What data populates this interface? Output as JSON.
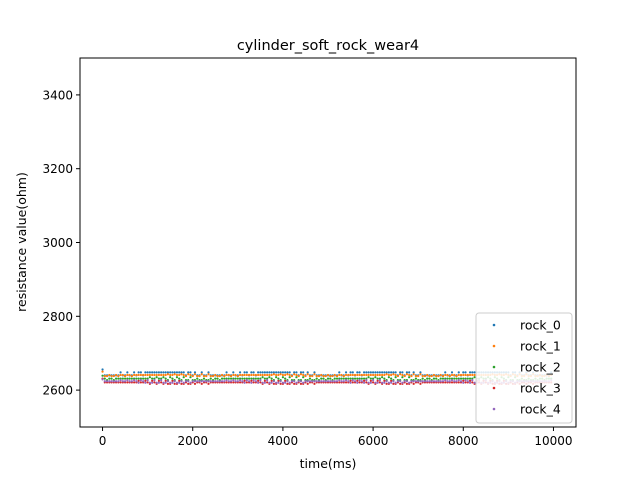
{
  "chart_data": {
    "type": "scatter",
    "title": "cylinder_soft_rock_wear4",
    "xlabel": "time(ms)",
    "ylabel": "resistance value(ohm)",
    "xlim": [
      -500,
      10500
    ],
    "ylim": [
      2500,
      3500
    ],
    "xticks": [
      0,
      2000,
      4000,
      6000,
      8000,
      10000
    ],
    "yticks": [
      2600,
      2800,
      3000,
      3200,
      3400
    ],
    "grid": false,
    "legend_position": "lower right",
    "x_range": [
      0,
      9950
    ],
    "x_step": 50,
    "series": [
      {
        "name": "rock_0",
        "color": "#1f77b4",
        "levels": [
          2648,
          2640
        ],
        "first_value": 2656
      },
      {
        "name": "rock_1",
        "color": "#ff7f0e",
        "levels": [
          2641,
          2638,
          2643
        ],
        "first_value": 2650
      },
      {
        "name": "rock_2",
        "color": "#2ca02c",
        "levels": [
          2631,
          2627,
          2635
        ],
        "first_value": 2639
      },
      {
        "name": "rock_3",
        "color": "#d62728",
        "levels": [
          2621,
          2617,
          2625
        ],
        "first_value": 2631
      },
      {
        "name": "rock_4",
        "color": "#9467bd",
        "levels": [
          2624,
          2620,
          2627
        ],
        "first_value": 2629
      }
    ]
  }
}
